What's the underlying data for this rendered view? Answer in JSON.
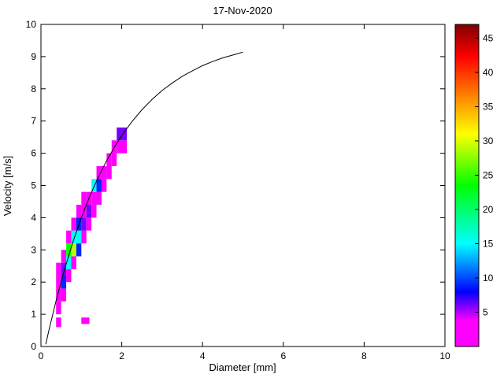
{
  "chart": {
    "title": "17-Nov-2020",
    "xlabel": "Diameter [mm]",
    "ylabel": "Velocity [m/s]"
  },
  "chart_data": {
    "type": "heatmap",
    "title": "17-Nov-2020",
    "xlabel": "Diameter [mm]",
    "ylabel": "Velocity [m/s]",
    "xlim": [
      0,
      10
    ],
    "ylim": [
      0,
      10
    ],
    "grid": false,
    "x_ticks": [
      0,
      2,
      4,
      6,
      8,
      10
    ],
    "y_ticks": [
      0,
      1,
      2,
      3,
      4,
      5,
      6,
      7,
      8,
      9,
      10
    ],
    "colorbar": {
      "min": 0,
      "max": 47,
      "ticks": [
        5,
        10,
        15,
        20,
        25,
        30,
        35,
        40,
        45
      ],
      "stops": [
        [
          0.0,
          "#ff00ff"
        ],
        [
          0.08,
          "#ff00ff"
        ],
        [
          0.17,
          "#0000ff"
        ],
        [
          0.32,
          "#00ffff"
        ],
        [
          0.5,
          "#00ff00"
        ],
        [
          0.66,
          "#ffff00"
        ],
        [
          0.78,
          "#ff8000"
        ],
        [
          0.9,
          "#ff0000"
        ],
        [
          1.0,
          "#7f0000"
        ]
      ]
    },
    "cells": [
      [
        0.375,
        0.6,
        0.125,
        0.3,
        2
      ],
      [
        1.0,
        0.7,
        0.2,
        0.2,
        2
      ],
      [
        0.375,
        1.0,
        0.125,
        0.4,
        2
      ],
      [
        0.375,
        1.4,
        0.125,
        0.4,
        2
      ],
      [
        0.5,
        1.4,
        0.125,
        0.4,
        2
      ],
      [
        0.375,
        1.8,
        0.125,
        0.4,
        2
      ],
      [
        0.5,
        1.8,
        0.125,
        0.4,
        9
      ],
      [
        0.375,
        2.2,
        0.125,
        0.4,
        2
      ],
      [
        0.5,
        2.2,
        0.125,
        0.4,
        6
      ],
      [
        0.625,
        2.0,
        0.125,
        0.4,
        2
      ],
      [
        0.5,
        2.6,
        0.125,
        0.4,
        2
      ],
      [
        0.625,
        2.4,
        0.125,
        0.4,
        15
      ],
      [
        0.75,
        2.4,
        0.125,
        0.4,
        2
      ],
      [
        0.625,
        2.8,
        0.125,
        0.4,
        24
      ],
      [
        0.75,
        2.8,
        0.125,
        0.4,
        29
      ],
      [
        0.875,
        2.8,
        0.125,
        0.4,
        9
      ],
      [
        0.625,
        3.2,
        0.125,
        0.4,
        2
      ],
      [
        0.75,
        3.2,
        0.125,
        0.4,
        15
      ],
      [
        0.875,
        3.2,
        0.125,
        0.4,
        15
      ],
      [
        0.75,
        3.6,
        0.125,
        0.4,
        2
      ],
      [
        0.875,
        3.6,
        0.125,
        0.4,
        9
      ],
      [
        1.0,
        3.2,
        0.125,
        0.4,
        2
      ],
      [
        1.0,
        3.6,
        0.125,
        0.4,
        6
      ],
      [
        1.125,
        3.6,
        0.125,
        0.4,
        2
      ],
      [
        0.875,
        4.0,
        0.125,
        0.4,
        2
      ],
      [
        1.0,
        4.0,
        0.125,
        0.4,
        2
      ],
      [
        1.125,
        4.0,
        0.125,
        0.4,
        6
      ],
      [
        1.25,
        4.0,
        0.125,
        0.4,
        2
      ],
      [
        1.0,
        4.4,
        0.125,
        0.4,
        2
      ],
      [
        1.125,
        4.4,
        0.125,
        0.4,
        2
      ],
      [
        1.25,
        4.4,
        0.125,
        0.4,
        2
      ],
      [
        1.375,
        4.4,
        0.125,
        0.4,
        2
      ],
      [
        1.25,
        4.8,
        0.125,
        0.4,
        15
      ],
      [
        1.375,
        4.8,
        0.125,
        0.4,
        9
      ],
      [
        1.5,
        4.8,
        0.125,
        0.4,
        2
      ],
      [
        1.375,
        5.2,
        0.125,
        0.4,
        2
      ],
      [
        1.5,
        5.2,
        0.125,
        0.4,
        2
      ],
      [
        1.625,
        5.2,
        0.125,
        0.4,
        2
      ],
      [
        1.625,
        5.6,
        0.125,
        0.4,
        2
      ],
      [
        1.75,
        5.6,
        0.125,
        0.4,
        2
      ],
      [
        1.75,
        6.0,
        0.125,
        0.4,
        2
      ],
      [
        1.875,
        6.0,
        0.25,
        0.4,
        2
      ],
      [
        1.875,
        6.4,
        0.25,
        0.4,
        6
      ]
    ],
    "curve": {
      "name": "terminal-velocity-curve",
      "points": [
        [
          0.12,
          0.07
        ],
        [
          0.2,
          0.52
        ],
        [
          0.4,
          1.55
        ],
        [
          0.6,
          2.46
        ],
        [
          0.8,
          3.28
        ],
        [
          1.0,
          4.0
        ],
        [
          1.2,
          4.64
        ],
        [
          1.4,
          5.2
        ],
        [
          1.6,
          5.71
        ],
        [
          1.8,
          6.15
        ],
        [
          2.0,
          6.55
        ],
        [
          2.25,
          6.98
        ],
        [
          2.5,
          7.35
        ],
        [
          2.75,
          7.67
        ],
        [
          3.0,
          7.95
        ],
        [
          3.25,
          8.18
        ],
        [
          3.5,
          8.39
        ],
        [
          3.75,
          8.56
        ],
        [
          4.0,
          8.72
        ],
        [
          4.25,
          8.85
        ],
        [
          4.5,
          8.96
        ],
        [
          4.75,
          9.05
        ],
        [
          5.0,
          9.14
        ]
      ]
    }
  }
}
